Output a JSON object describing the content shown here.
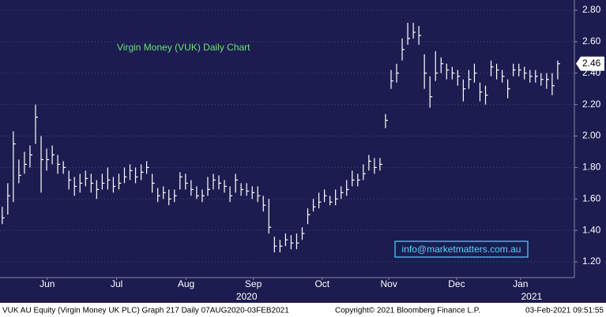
{
  "chart_data": {
    "type": "ohlc",
    "title": "Virgin Money (VUK) Daily Chart",
    "watermark": "info@marketmatters.com.au",
    "footer_left": "VUK AU Equity (Virgin Money UK PLC) Graph 217  Daily 07AUG2020-03FEB2021",
    "footer_center": "Copyright© 2021 Bloomberg Finance L.P.",
    "footer_right": "03-Feb-2021 09:51:55",
    "color": "#ffffff",
    "values": [
      1.48,
      1.62,
      1.95,
      1.75,
      1.82,
      1.88,
      2.12,
      1.85,
      1.85,
      1.88,
      1.82,
      1.8,
      1.72,
      1.68,
      1.7,
      1.73,
      1.7,
      1.66,
      1.7,
      1.72,
      1.68,
      1.7,
      1.74,
      1.78,
      1.74,
      1.77,
      1.8,
      1.7,
      1.62,
      1.64,
      1.6,
      1.62,
      1.74,
      1.7,
      1.66,
      1.62,
      1.62,
      1.66,
      1.72,
      1.7,
      1.68,
      1.62,
      1.72,
      1.66,
      1.65,
      1.64,
      1.62,
      1.56,
      1.42,
      1.3,
      1.3,
      1.34,
      1.32,
      1.32,
      1.38,
      1.5,
      1.55,
      1.58,
      1.62,
      1.58,
      1.6,
      1.64,
      1.66,
      1.72,
      1.72,
      1.76,
      1.84,
      1.8,
      1.82,
      2.1,
      2.35,
      2.4,
      2.55,
      2.62,
      2.66,
      2.64,
      2.4,
      2.25,
      2.4,
      2.46,
      2.42,
      2.4,
      2.38,
      2.3,
      2.36,
      2.4,
      2.28,
      2.26,
      2.44,
      2.42,
      2.38,
      2.3,
      2.42,
      2.42,
      2.4,
      2.38,
      2.38,
      2.36,
      2.36,
      2.32,
      2.46
    ],
    "high": [
      1.55,
      1.7,
      2.03,
      1.85,
      1.9,
      1.94,
      2.2,
      2.0,
      1.92,
      1.94,
      1.88,
      1.84,
      1.78,
      1.74,
      1.76,
      1.78,
      1.76,
      1.72,
      1.76,
      1.8,
      1.74,
      1.76,
      1.8,
      1.82,
      1.8,
      1.82,
      1.84,
      1.76,
      1.67,
      1.68,
      1.66,
      1.66,
      1.77,
      1.76,
      1.72,
      1.68,
      1.66,
      1.74,
      1.76,
      1.75,
      1.72,
      1.68,
      1.76,
      1.7,
      1.7,
      1.68,
      1.68,
      1.62,
      1.6,
      1.36,
      1.34,
      1.38,
      1.37,
      1.38,
      1.42,
      1.54,
      1.6,
      1.64,
      1.66,
      1.62,
      1.66,
      1.68,
      1.72,
      1.78,
      1.76,
      1.82,
      1.88,
      1.86,
      1.86,
      2.14,
      2.42,
      2.46,
      2.62,
      2.72,
      2.72,
      2.7,
      2.52,
      2.38,
      2.54,
      2.5,
      2.46,
      2.44,
      2.42,
      2.36,
      2.42,
      2.46,
      2.34,
      2.32,
      2.48,
      2.46,
      2.42,
      2.36,
      2.46,
      2.46,
      2.44,
      2.42,
      2.42,
      2.4,
      2.4,
      2.4,
      2.48
    ],
    "low": [
      1.44,
      1.5,
      1.58,
      1.7,
      1.76,
      1.8,
      1.95,
      1.64,
      1.78,
      1.82,
      1.76,
      1.76,
      1.66,
      1.62,
      1.64,
      1.68,
      1.64,
      1.6,
      1.66,
      1.66,
      1.64,
      1.66,
      1.7,
      1.72,
      1.7,
      1.72,
      1.76,
      1.64,
      1.58,
      1.6,
      1.56,
      1.58,
      1.66,
      1.66,
      1.62,
      1.6,
      1.58,
      1.62,
      1.66,
      1.66,
      1.64,
      1.58,
      1.64,
      1.62,
      1.62,
      1.6,
      1.58,
      1.52,
      1.38,
      1.26,
      1.26,
      1.3,
      1.28,
      1.28,
      1.34,
      1.44,
      1.52,
      1.54,
      1.58,
      1.56,
      1.56,
      1.6,
      1.62,
      1.68,
      1.68,
      1.72,
      1.78,
      1.76,
      1.78,
      2.05,
      2.3,
      2.34,
      2.48,
      2.58,
      2.62,
      2.58,
      2.3,
      2.18,
      2.35,
      2.4,
      2.36,
      2.36,
      2.32,
      2.22,
      2.3,
      2.34,
      2.22,
      2.2,
      2.38,
      2.36,
      2.34,
      2.24,
      2.38,
      2.38,
      2.36,
      2.34,
      2.34,
      2.32,
      2.3,
      2.26,
      2.36
    ],
    "value_labels": [
      null,
      null,
      null,
      null,
      null,
      null,
      null,
      null,
      null,
      null,
      null,
      null,
      null,
      null,
      null,
      null,
      null,
      null,
      null,
      null,
      null,
      null,
      null,
      null,
      null,
      null,
      null,
      null,
      null,
      null,
      null,
      null,
      null,
      null,
      null,
      null,
      null,
      null,
      null,
      null,
      null,
      null,
      null,
      null,
      null,
      null,
      null,
      null,
      null,
      null,
      null,
      null,
      null,
      null,
      null,
      null,
      null,
      null,
      null,
      null,
      null,
      null,
      null,
      null,
      null,
      null,
      null,
      null,
      null,
      null,
      null,
      null,
      null,
      null,
      null,
      null,
      null,
      null,
      null,
      null,
      null,
      null,
      null,
      null,
      null,
      null,
      null,
      null,
      null,
      null,
      null,
      null,
      null,
      null,
      null,
      null,
      null,
      null,
      null,
      null,
      "2.46"
    ],
    "xlim": [
      -0.4,
      103
    ],
    "xticks": [
      {
        "value": 8.1,
        "label": "Jun"
      },
      {
        "value": 20.6,
        "label": "Jul"
      },
      {
        "value": 33.1,
        "label": "Aug"
      },
      {
        "value": 45.2,
        "label": "Sep"
      },
      {
        "value": 57.6,
        "label": "Oct"
      },
      {
        "value": 69.6,
        "label": "Nov"
      },
      {
        "value": 81.8,
        "label": "Dec"
      },
      {
        "value": 93.3,
        "label": "Jan"
      }
    ],
    "year_ticks": [
      {
        "value": 44,
        "label": "2020"
      },
      {
        "value": 95.3,
        "label": "2021"
      }
    ],
    "ylim": [
      1.1,
      2.865
    ],
    "yticks": [
      {
        "value": 1.2,
        "label": "1.20"
      },
      {
        "value": 1.4,
        "label": "1.40"
      },
      {
        "value": 1.6,
        "label": "1.60"
      },
      {
        "value": 1.8,
        "label": "1.80"
      },
      {
        "value": 2.0,
        "label": "2.00"
      },
      {
        "value": 2.2,
        "label": "2.20"
      },
      {
        "value": 2.4,
        "label": "2.40"
      },
      {
        "value": 2.6,
        "label": "2.60"
      },
      {
        "value": 2.8,
        "label": "2.80"
      }
    ],
    "grid": true
  }
}
